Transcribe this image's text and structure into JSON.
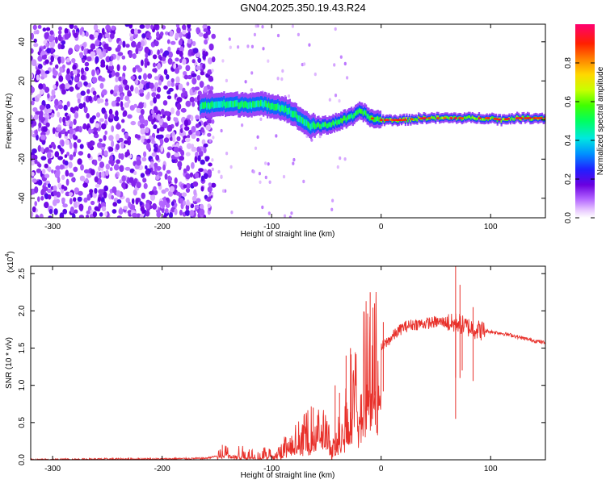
{
  "title": "GN04.2025.350.19.43.R24",
  "chart_data": [
    {
      "type": "heatmap",
      "xlabel": "Height of straight line (km)",
      "ylabel": "Frequency (Hz)",
      "xlim": [
        -320,
        150
      ],
      "ylim": [
        -50,
        49
      ],
      "xticks": [
        -300,
        -200,
        -100,
        0,
        100
      ],
      "yticks": [
        -40,
        -20,
        0,
        20,
        40
      ],
      "colorbar": {
        "label": "Normalized spectral amplitude",
        "range": [
          0,
          1
        ],
        "ticks": [
          0.0,
          0.2,
          0.4,
          0.6,
          0.8
        ]
      },
      "noise_region": {
        "x_start": -320,
        "x_end": -165
      },
      "ridge": [
        {
          "x": -165,
          "y": 7
        },
        {
          "x": -150,
          "y": 8
        },
        {
          "x": -130,
          "y": 8
        },
        {
          "x": -110,
          "y": 8
        },
        {
          "x": -95,
          "y": 7
        },
        {
          "x": -85,
          "y": 5
        },
        {
          "x": -75,
          "y": 1
        },
        {
          "x": -65,
          "y": -3
        },
        {
          "x": -55,
          "y": -3
        },
        {
          "x": -45,
          "y": -2
        },
        {
          "x": -35,
          "y": 0
        },
        {
          "x": -25,
          "y": 2
        },
        {
          "x": -18,
          "y": 5
        },
        {
          "x": -10,
          "y": 1
        },
        {
          "x": 0,
          "y": 0
        },
        {
          "x": 20,
          "y": 0
        },
        {
          "x": 40,
          "y": 1
        },
        {
          "x": 60,
          "y": 1
        },
        {
          "x": 80,
          "y": 1
        },
        {
          "x": 100,
          "y": 1
        },
        {
          "x": 110,
          "y": 0
        },
        {
          "x": 120,
          "y": 1
        },
        {
          "x": 150,
          "y": 1
        }
      ]
    },
    {
      "type": "line",
      "xlabel": "Height of straight line (km)",
      "ylabel": "SNR (10 * v/v)",
      "yscale_note": "(x10",
      "yscale_exp": "4",
      "xlim": [
        -320,
        150
      ],
      "ylim": [
        0,
        2.6
      ],
      "xticks": [
        -300,
        -200,
        -100,
        0,
        100
      ],
      "yticks": [
        0.0,
        0.5,
        1.0,
        1.5,
        2.0,
        2.5
      ],
      "series": [
        {
          "color": "#e8302a",
          "x": [
            -320,
            -250,
            -200,
            -160,
            -150,
            -140,
            -130,
            -120,
            -110,
            -100,
            -90,
            -80,
            -70,
            -60,
            -50,
            -45,
            -40,
            -35,
            -30,
            -25,
            -20,
            -15,
            -10,
            -5,
            0,
            10,
            20,
            30,
            40,
            50,
            60,
            65,
            70,
            75,
            80,
            90,
            100,
            110,
            120,
            130,
            140,
            150
          ],
          "y": [
            0.0,
            0.01,
            0.01,
            0.02,
            0.05,
            0.1,
            0.08,
            0.05,
            0.05,
            0.08,
            0.15,
            0.25,
            0.35,
            0.45,
            0.4,
            0.1,
            0.3,
            0.5,
            0.8,
            1.0,
            1.05,
            1.3,
            1.4,
            1.45,
            1.5,
            1.65,
            1.78,
            1.82,
            1.83,
            1.85,
            1.85,
            1.82,
            1.85,
            1.8,
            1.78,
            1.74,
            1.72,
            1.7,
            1.67,
            1.63,
            1.6,
            1.57
          ],
          "spikes": [
            {
              "x": -145,
              "y": 0.2
            },
            {
              "x": -62,
              "y": 0.7
            },
            {
              "x": -58,
              "y": 0.6
            },
            {
              "x": -42,
              "y": 1.0
            },
            {
              "x": -38,
              "y": 0.9
            },
            {
              "x": -32,
              "y": 1.4
            },
            {
              "x": -28,
              "y": 1.5
            },
            {
              "x": -10,
              "y": 2.25
            },
            {
              "x": -6,
              "y": 2.1
            },
            {
              "x": 2,
              "y": 1.85
            },
            {
              "x": 68,
              "y": 2.6
            },
            {
              "x": 72,
              "y": 2.35
            },
            {
              "x": 84,
              "y": 2.05
            }
          ],
          "dips": [
            {
              "x": -45,
              "y": 0.02
            },
            {
              "x": 68,
              "y": 0.55
            },
            {
              "x": 74,
              "y": 1.2
            }
          ]
        }
      ]
    }
  ]
}
